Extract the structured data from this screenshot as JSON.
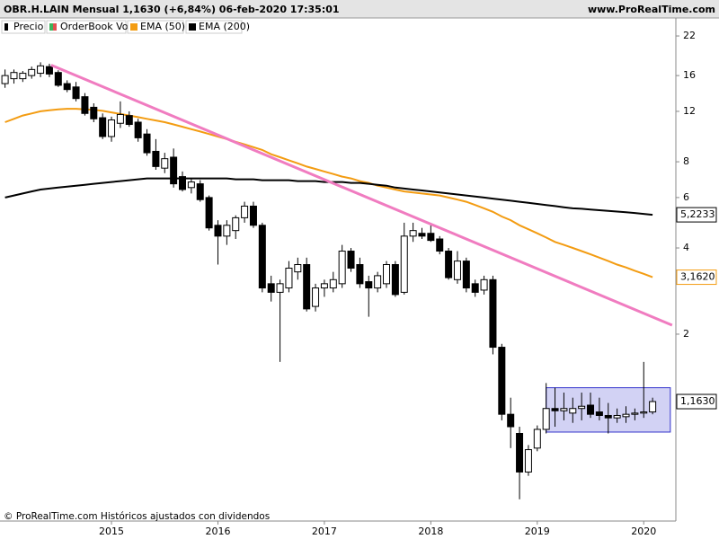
{
  "chart_data": {
    "type": "candlestick",
    "title": "OBR.H.LAIN Mensual 1,1630 (+6,84%) 06-feb-2020 17:35:01",
    "site": "www.ProRealTime.com",
    "footer": "© ProRealTime.com Históricos ajustados con dividendos",
    "price_name": "Precio",
    "volume_name": "OrderBook Vol",
    "close_label": "1,1630",
    "log_scale": true,
    "ylim": [
      0.445,
      24
    ],
    "yticks": [
      2,
      4,
      6,
      8,
      12,
      16,
      22
    ],
    "categories": [
      null,
      null,
      null,
      null,
      null,
      null,
      null,
      null,
      null,
      null,
      null,
      null,
      "2015",
      null,
      null,
      null,
      null,
      null,
      null,
      null,
      null,
      null,
      null,
      null,
      "2016",
      null,
      null,
      null,
      null,
      null,
      null,
      null,
      null,
      null,
      null,
      null,
      "2017",
      null,
      null,
      null,
      null,
      null,
      null,
      null,
      null,
      null,
      null,
      null,
      "2018",
      null,
      null,
      null,
      null,
      null,
      null,
      null,
      null,
      null,
      null,
      null,
      "2019",
      null,
      null,
      null,
      null,
      null,
      null,
      null,
      null,
      null,
      null,
      null,
      "2020",
      null
    ],
    "ohlc": [
      [
        15.0,
        16.8,
        14.5,
        16.0
      ],
      [
        15.6,
        16.8,
        15.0,
        16.4
      ],
      [
        15.6,
        16.6,
        15.2,
        16.3
      ],
      [
        16.0,
        17.2,
        15.6,
        16.8
      ],
      [
        16.3,
        17.8,
        15.8,
        17.3
      ],
      [
        17.2,
        17.6,
        15.8,
        16.2
      ],
      [
        16.4,
        16.7,
        14.6,
        14.8
      ],
      [
        15.0,
        15.4,
        14.0,
        14.3
      ],
      [
        14.6,
        15.2,
        13.0,
        13.3
      ],
      [
        13.5,
        13.9,
        11.6,
        11.8
      ],
      [
        12.4,
        12.8,
        11.0,
        11.3
      ],
      [
        11.4,
        11.8,
        9.6,
        9.8
      ],
      [
        9.8,
        11.5,
        9.4,
        11.2
      ],
      [
        10.9,
        13.0,
        10.5,
        11.7
      ],
      [
        11.6,
        12.0,
        10.6,
        10.8
      ],
      [
        11.0,
        11.3,
        9.4,
        9.7
      ],
      [
        10.0,
        10.4,
        8.4,
        8.6
      ],
      [
        8.7,
        9.6,
        7.5,
        7.7
      ],
      [
        7.6,
        8.6,
        7.3,
        8.2
      ],
      [
        8.3,
        8.9,
        6.5,
        6.7
      ],
      [
        7.1,
        7.4,
        6.3,
        6.4
      ],
      [
        6.5,
        7.0,
        6.2,
        6.8
      ],
      [
        6.7,
        6.9,
        5.8,
        5.9
      ],
      [
        6.0,
        6.1,
        4.6,
        4.7
      ],
      [
        4.8,
        5.0,
        3.5,
        4.4
      ],
      [
        4.4,
        5.0,
        4.1,
        4.8
      ],
      [
        4.6,
        5.2,
        4.3,
        5.1
      ],
      [
        5.1,
        5.8,
        4.9,
        5.6
      ],
      [
        5.6,
        5.8,
        4.7,
        4.8
      ],
      [
        4.8,
        4.9,
        2.8,
        2.9
      ],
      [
        3.0,
        3.2,
        2.6,
        2.8
      ],
      [
        2.8,
        3.1,
        1.6,
        3.0
      ],
      [
        2.9,
        3.6,
        2.8,
        3.4
      ],
      [
        3.3,
        3.7,
        3.1,
        3.5
      ],
      [
        3.5,
        3.7,
        2.4,
        2.45
      ],
      [
        2.5,
        3.0,
        2.4,
        2.9
      ],
      [
        2.9,
        3.1,
        2.7,
        3.0
      ],
      [
        2.9,
        3.3,
        2.8,
        3.1
      ],
      [
        3.0,
        4.1,
        2.9,
        3.9
      ],
      [
        3.9,
        4.0,
        3.3,
        3.4
      ],
      [
        3.5,
        3.7,
        2.9,
        3.0
      ],
      [
        3.05,
        3.2,
        2.3,
        2.9
      ],
      [
        2.9,
        3.3,
        2.8,
        3.2
      ],
      [
        3.0,
        3.6,
        2.9,
        3.5
      ],
      [
        3.5,
        3.6,
        2.7,
        2.75
      ],
      [
        2.8,
        4.9,
        2.75,
        4.4
      ],
      [
        4.4,
        4.9,
        4.2,
        4.6
      ],
      [
        4.5,
        4.7,
        4.3,
        4.4
      ],
      [
        4.5,
        4.8,
        4.2,
        4.25
      ],
      [
        4.3,
        4.4,
        3.8,
        3.9
      ],
      [
        3.9,
        4.0,
        3.1,
        3.15
      ],
      [
        3.1,
        3.9,
        3.0,
        3.6
      ],
      [
        3.6,
        3.7,
        2.8,
        2.9
      ],
      [
        3.0,
        3.1,
        2.7,
        2.8
      ],
      [
        2.85,
        3.2,
        2.75,
        3.1
      ],
      [
        3.1,
        3.2,
        1.7,
        1.8
      ],
      [
        1.8,
        1.85,
        1.0,
        1.05
      ],
      [
        1.05,
        1.2,
        0.8,
        0.95
      ],
      [
        0.9,
        0.95,
        0.53,
        0.66
      ],
      [
        0.66,
        0.82,
        0.64,
        0.79
      ],
      [
        0.8,
        0.96,
        0.78,
        0.93
      ],
      [
        0.93,
        1.35,
        0.9,
        1.1
      ],
      [
        1.1,
        1.3,
        0.95,
        1.08
      ],
      [
        1.08,
        1.25,
        1.0,
        1.1
      ],
      [
        1.06,
        1.2,
        0.98,
        1.1
      ],
      [
        1.1,
        1.25,
        1.0,
        1.12
      ],
      [
        1.13,
        1.25,
        1.02,
        1.05
      ],
      [
        1.07,
        1.2,
        1.0,
        1.04
      ],
      [
        1.04,
        1.15,
        0.9,
        1.02
      ],
      [
        1.02,
        1.1,
        0.98,
        1.04
      ],
      [
        1.03,
        1.12,
        0.98,
        1.05
      ],
      [
        1.05,
        1.1,
        1.0,
        1.06
      ],
      [
        1.06,
        1.6,
        1.02,
        1.07
      ],
      [
        1.07,
        1.2,
        1.05,
        1.163
      ]
    ],
    "series": [
      {
        "name": "EMA (50)",
        "color": "#f39c12",
        "last_label": "3,1620",
        "values": [
          11.0,
          11.3,
          11.6,
          11.8,
          12.0,
          12.1,
          12.2,
          12.25,
          12.25,
          12.2,
          12.15,
          12.05,
          11.9,
          11.75,
          11.6,
          11.45,
          11.3,
          11.15,
          11.0,
          10.8,
          10.6,
          10.4,
          10.2,
          10.0,
          9.8,
          9.6,
          9.4,
          9.2,
          9.0,
          8.8,
          8.5,
          8.3,
          8.1,
          7.9,
          7.7,
          7.55,
          7.4,
          7.25,
          7.1,
          7.0,
          6.85,
          6.75,
          6.6,
          6.5,
          6.4,
          6.3,
          6.25,
          6.2,
          6.15,
          6.1,
          6.0,
          5.9,
          5.8,
          5.65,
          5.5,
          5.35,
          5.15,
          5.0,
          4.8,
          4.65,
          4.5,
          4.35,
          4.2,
          4.1,
          4.0,
          3.9,
          3.8,
          3.7,
          3.6,
          3.5,
          3.42,
          3.33,
          3.25,
          3.162
        ]
      },
      {
        "name": "EMA (200)",
        "color": "#000000",
        "last_label": "5,2233",
        "values": [
          6.0,
          6.1,
          6.2,
          6.3,
          6.4,
          6.45,
          6.5,
          6.55,
          6.6,
          6.65,
          6.7,
          6.75,
          6.8,
          6.85,
          6.9,
          6.95,
          7.0,
          7.0,
          7.0,
          7.0,
          7.0,
          7.0,
          7.0,
          7.0,
          7.0,
          7.0,
          6.95,
          6.95,
          6.95,
          6.9,
          6.9,
          6.9,
          6.9,
          6.85,
          6.85,
          6.85,
          6.8,
          6.8,
          6.8,
          6.75,
          6.75,
          6.7,
          6.65,
          6.6,
          6.5,
          6.45,
          6.4,
          6.35,
          6.3,
          6.25,
          6.2,
          6.15,
          6.1,
          6.05,
          6.0,
          5.95,
          5.9,
          5.85,
          5.8,
          5.75,
          5.7,
          5.65,
          5.6,
          5.55,
          5.5,
          5.48,
          5.45,
          5.42,
          5.39,
          5.36,
          5.33,
          5.3,
          5.26,
          5.2233
        ]
      }
    ],
    "trendline": {
      "color": "#f07cc0",
      "x": [
        5.2,
        75.2
      ],
      "values": [
        17.4,
        2.15
      ]
    },
    "range_box": {
      "color": "#3333cc",
      "x": [
        61.0,
        75.0
      ],
      "values": [
        1.3,
        0.91
      ]
    }
  }
}
